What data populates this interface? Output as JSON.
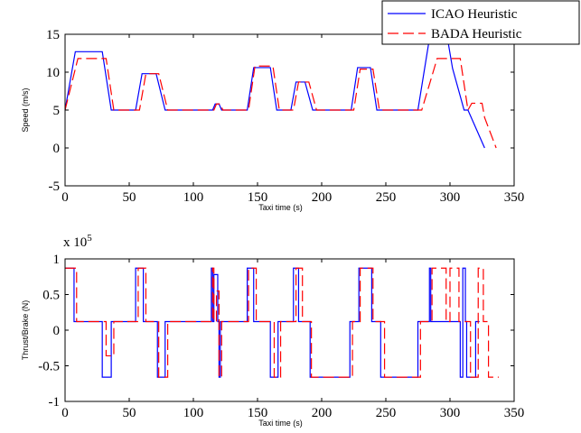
{
  "chart_data": [
    {
      "type": "line",
      "title": "",
      "xlabel": "Taxi time (s)",
      "ylabel": "Speed (m/s)",
      "xlim": [
        0,
        350
      ],
      "ylim": [
        -5,
        15
      ],
      "xticks": [
        "0",
        "50",
        "100",
        "150",
        "200",
        "250",
        "300",
        "350"
      ],
      "yticks": [
        "15",
        "10",
        "5",
        "0",
        "-5"
      ],
      "legend": {
        "position": "top-right",
        "entries": [
          "ICAO Heuristic",
          "BADA Heuristic"
        ]
      },
      "series": [
        {
          "name": "ICAO Heuristic",
          "color": "#0000ff",
          "dash": "solid",
          "x": [
            0,
            8,
            29,
            36,
            55,
            60,
            71,
            78,
            115,
            117,
            120,
            122,
            142,
            147,
            160,
            165,
            176,
            180,
            187,
            193,
            223,
            228,
            238,
            243,
            275,
            285,
            297,
            302,
            311,
            314,
            327
          ],
          "y": [
            5.0,
            12.7,
            12.7,
            5.0,
            5.0,
            9.8,
            9.8,
            5.0,
            5.0,
            5.8,
            5.8,
            5.0,
            5.0,
            10.6,
            10.6,
            5.0,
            5.0,
            8.7,
            8.7,
            5.0,
            5.0,
            10.6,
            10.6,
            5.0,
            5.0,
            15.5,
            15.5,
            10.5,
            5.0,
            5.0,
            0.0
          ]
        },
        {
          "name": "BADA Heuristic",
          "color": "#ff0000",
          "dash": "dashed",
          "x": [
            0,
            10,
            32,
            38,
            58,
            63,
            73,
            80,
            116,
            118,
            121,
            123,
            143,
            148,
            162,
            167,
            178,
            182,
            190,
            196,
            225,
            230,
            240,
            245,
            278,
            290,
            298,
            308,
            314,
            317,
            325,
            327,
            336
          ],
          "y": [
            5.0,
            11.8,
            11.8,
            5.0,
            5.0,
            9.8,
            9.8,
            5.0,
            5.0,
            5.8,
            5.8,
            5.0,
            5.0,
            10.8,
            10.8,
            5.0,
            5.0,
            8.7,
            8.7,
            5.0,
            5.0,
            10.4,
            10.4,
            5.0,
            5.0,
            11.8,
            11.8,
            11.8,
            5.0,
            5.9,
            5.9,
            4.0,
            0.0
          ]
        }
      ],
      "grid": false
    },
    {
      "type": "line",
      "title": "",
      "xlabel": "Taxi time (s)",
      "ylabel": "Thrust/Brake (N)",
      "y_multiplier_label": "x 10^5",
      "xlim": [
        0,
        350
      ],
      "ylim": [
        -1,
        1
      ],
      "xticks": [
        "0",
        "50",
        "100",
        "150",
        "200",
        "250",
        "300",
        "350"
      ],
      "yticks": [
        "1",
        "0.5",
        "0",
        "-0.5",
        "-1"
      ],
      "series": [
        {
          "name": "ICAO Heuristic",
          "color": "#0000ff",
          "dash": "solid",
          "x": [
            0,
            7,
            7,
            8,
            8,
            29,
            29,
            36,
            36,
            55,
            55,
            61,
            61,
            72,
            72,
            78,
            78,
            114,
            114,
            115,
            115,
            116,
            116,
            119,
            119,
            120,
            120,
            121,
            121,
            142,
            142,
            147,
            147,
            160,
            160,
            166,
            166,
            178,
            178,
            182,
            182,
            191,
            191,
            222,
            222,
            229,
            229,
            239,
            239,
            246,
            246,
            275,
            275,
            284,
            284,
            285,
            285,
            308,
            308,
            310,
            310,
            312,
            312,
            313,
            313,
            320,
            320,
            323
          ],
          "y": [
            0.87,
            0.87,
            0.12,
            0.12,
            0.12,
            0.12,
            -0.66,
            -0.66,
            0.12,
            0.12,
            0.87,
            0.87,
            0.12,
            0.12,
            -0.66,
            -0.66,
            0.12,
            0.12,
            0.87,
            0.87,
            0.12,
            0.12,
            0.78,
            0.78,
            0.12,
            0.12,
            -0.66,
            -0.66,
            0.12,
            0.12,
            0.87,
            0.87,
            0.12,
            0.12,
            -0.66,
            -0.66,
            0.12,
            0.12,
            0.87,
            0.87,
            0.12,
            0.12,
            -0.66,
            -0.66,
            0.12,
            0.12,
            0.87,
            0.87,
            0.12,
            0.12,
            -0.66,
            -0.66,
            0.12,
            0.12,
            0.87,
            0.87,
            0.12,
            0.12,
            -0.66,
            -0.66,
            0.87,
            0.87,
            0.12,
            0.12,
            -0.66,
            -0.66,
            0.12,
            0.12
          ]
        },
        {
          "name": "BADA Heuristic",
          "color": "#ff0000",
          "dash": "dashed",
          "x": [
            0,
            9,
            9,
            32,
            32,
            38,
            38,
            57,
            57,
            63,
            63,
            73,
            73,
            80,
            80,
            115,
            115,
            116,
            116,
            118,
            118,
            120,
            120,
            122,
            122,
            143,
            143,
            149,
            149,
            163,
            163,
            168,
            168,
            180,
            180,
            185,
            185,
            192,
            192,
            224,
            224,
            230,
            230,
            240,
            240,
            249,
            249,
            277,
            277,
            286,
            286,
            297,
            297,
            300,
            300,
            307,
            307,
            316,
            316,
            322,
            322,
            326,
            326,
            330,
            330,
            338
          ],
          "y": [
            0.87,
            0.87,
            0.12,
            0.12,
            -0.36,
            -0.36,
            0.12,
            0.12,
            0.87,
            0.87,
            0.12,
            0.12,
            -0.66,
            -0.66,
            0.12,
            0.12,
            0.87,
            0.87,
            0.12,
            0.12,
            0.55,
            0.55,
            -0.66,
            -0.66,
            0.12,
            0.12,
            0.87,
            0.87,
            0.12,
            0.12,
            -0.66,
            -0.66,
            0.12,
            0.12,
            0.87,
            0.87,
            0.12,
            0.12,
            -0.66,
            -0.66,
            0.12,
            0.12,
            0.87,
            0.87,
            0.12,
            0.12,
            -0.66,
            -0.66,
            0.12,
            0.12,
            0.87,
            0.87,
            0.12,
            0.12,
            0.87,
            0.87,
            0.12,
            0.12,
            -0.66,
            -0.66,
            0.87,
            0.87,
            0.12,
            0.12,
            -0.66,
            -0.66
          ]
        }
      ],
      "grid": false
    }
  ]
}
